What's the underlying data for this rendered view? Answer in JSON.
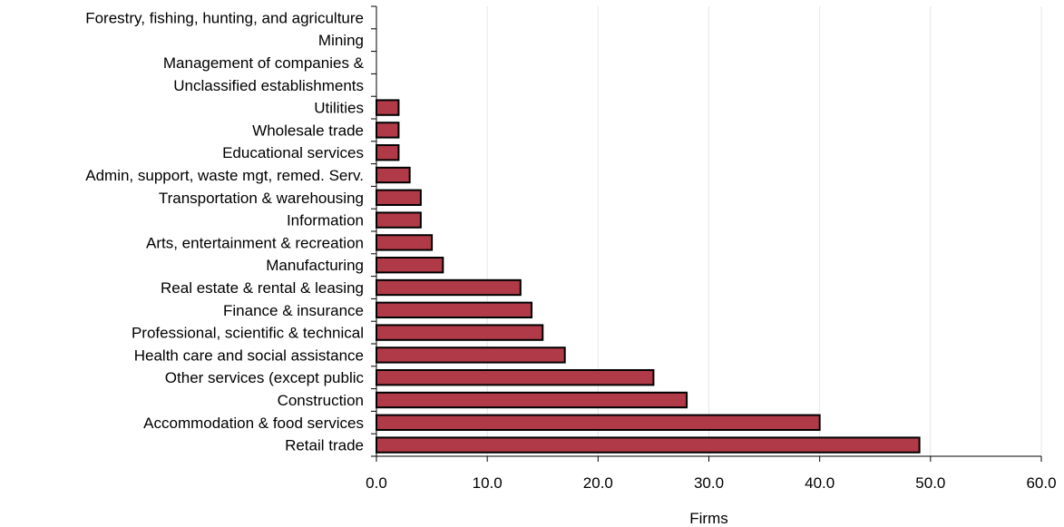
{
  "colors": {
    "bar_fill": "#b03a48",
    "bar_stroke": "#000000",
    "gridline": "#e6e6e6",
    "axis": "#000000",
    "background": "#ffffff"
  },
  "chart_data": {
    "type": "bar",
    "orientation": "horizontal",
    "title": "",
    "xlabel": "Firms",
    "ylabel": "",
    "xlim": [
      0,
      60
    ],
    "xticks": [
      0,
      10,
      20,
      30,
      40,
      50,
      60
    ],
    "xtick_labels": [
      "0.0",
      "10.0",
      "20.0",
      "30.0",
      "40.0",
      "50.0",
      "60.0"
    ],
    "grid": "vertical",
    "legend": "none",
    "categories": [
      "Forestry, fishing, hunting, and agriculture",
      "Mining",
      "Management of companies &",
      "Unclassified establishments",
      "Utilities",
      "Wholesale trade",
      "Educational services",
      "Admin, support, waste mgt, remed. Serv.",
      "Transportation & warehousing",
      "Information",
      "Arts, entertainment & recreation",
      "Manufacturing",
      "Real estate & rental & leasing",
      "Finance & insurance",
      "Professional, scientific & technical",
      "Health care and social assistance",
      "Other services (except public",
      "Construction",
      "Accommodation & food services",
      "Retail trade"
    ],
    "values": [
      0,
      0,
      0,
      0,
      2,
      2,
      2,
      3,
      4,
      4,
      5,
      6,
      13,
      14,
      15,
      17,
      25,
      28,
      40,
      49
    ]
  }
}
